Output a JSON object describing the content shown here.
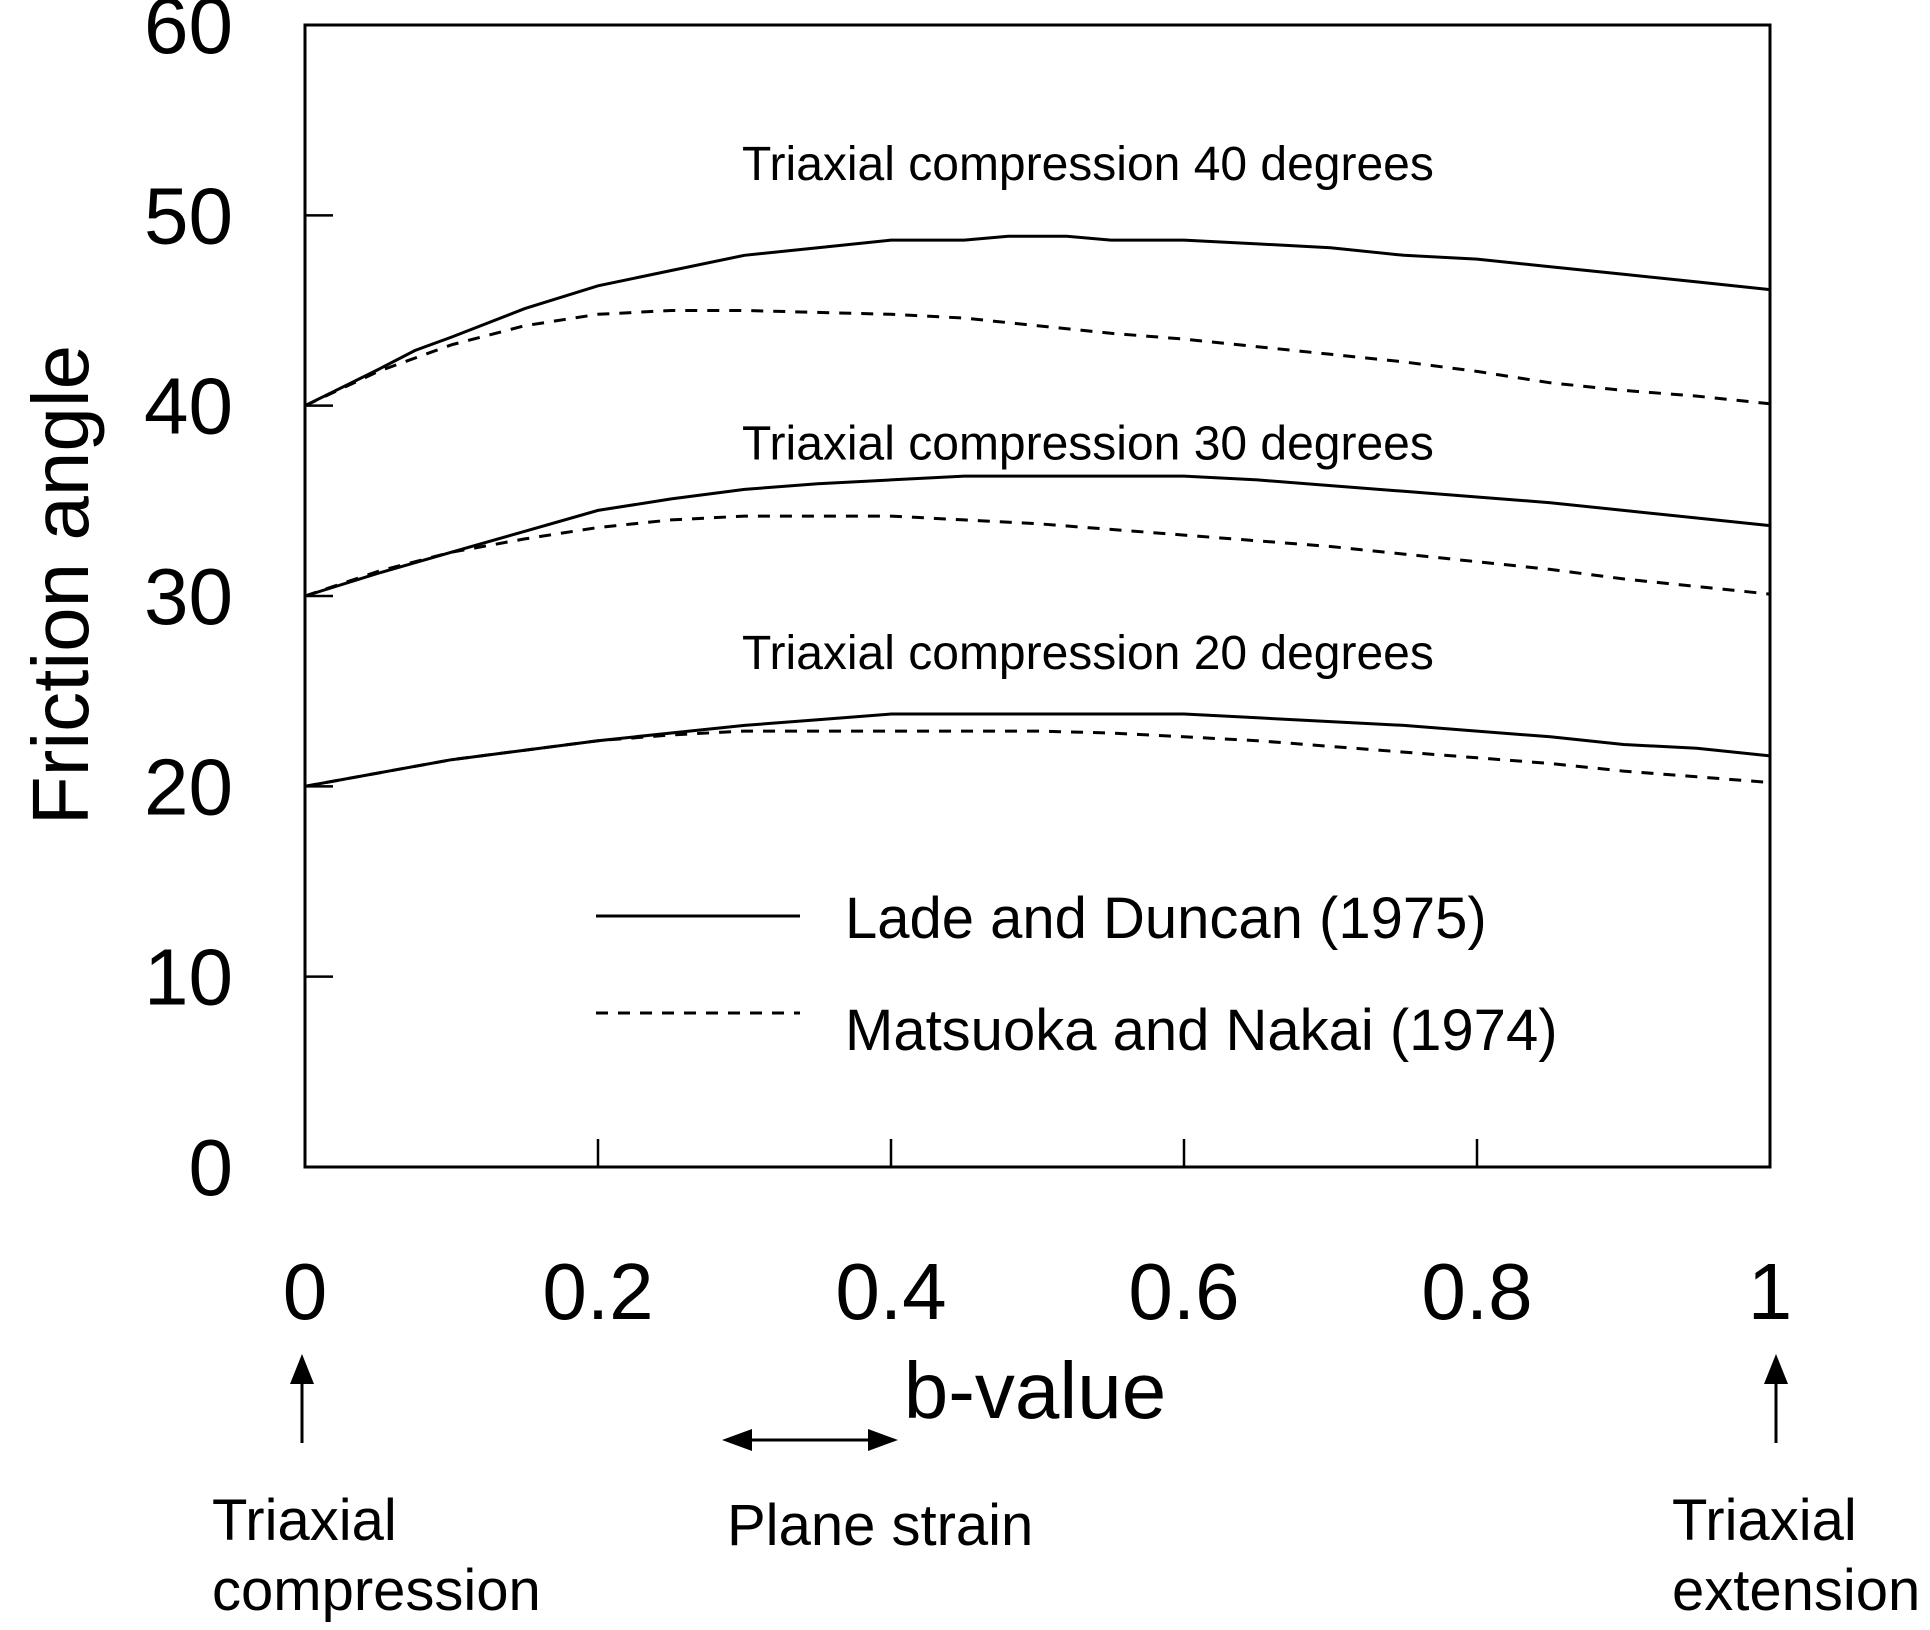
{
  "chart_data": {
    "type": "line",
    "xlabel": "b-value",
    "ylabel": "Friction angle",
    "xlim": [
      0,
      1
    ],
    "ylim": [
      0,
      60
    ],
    "x_ticks": [
      0,
      0.2,
      0.4,
      0.6,
      0.8,
      1
    ],
    "y_ticks": [
      0,
      10,
      20,
      30,
      40,
      50,
      60
    ],
    "x_tick_labels": [
      "0",
      "0.2",
      "0.4",
      "0.6",
      "0.8",
      "1"
    ],
    "y_tick_labels": [
      "0",
      "10",
      "20",
      "30",
      "40",
      "50",
      "60"
    ],
    "grid": false,
    "legend": {
      "placement": "center",
      "entries": [
        {
          "label": "Lade and Duncan (1975)",
          "style": "solid"
        },
        {
          "label": "Matsuoka and Nakai (1974)",
          "style": "dashed"
        }
      ]
    },
    "groups": [
      {
        "label": "Triaxial compression 40 degrees",
        "label_y": 52.7,
        "series": [
          {
            "model": "Lade and Duncan (1975)",
            "style": "solid",
            "x": [
              0,
              0.05,
              0.075,
              0.1,
              0.15,
              0.2,
              0.25,
              0.3,
              0.35,
              0.4,
              0.45,
              0.48,
              0.52,
              0.55,
              0.6,
              0.65,
              0.7,
              0.75,
              0.8,
              0.85,
              0.9,
              0.95,
              1
            ],
            "y": [
              40,
              41.9,
              42.9,
              43.6,
              45.1,
              46.3,
              47.1,
              47.9,
              48.3,
              48.7,
              48.7,
              48.9,
              48.9,
              48.7,
              48.7,
              48.5,
              48.3,
              47.9,
              47.7,
              47.3,
              46.9,
              46.5,
              46.1
            ]
          },
          {
            "model": "Matsuoka and Nakai (1974)",
            "style": "dashed",
            "x": [
              0,
              0.05,
              0.1,
              0.15,
              0.2,
              0.25,
              0.3,
              0.35,
              0.4,
              0.45,
              0.5,
              0.55,
              0.6,
              0.65,
              0.7,
              0.75,
              0.8,
              0.85,
              0.9,
              0.95,
              1
            ],
            "y": [
              40,
              41.8,
              43.2,
              44.2,
              44.8,
              45.0,
              45.0,
              44.9,
              44.8,
              44.6,
              44.2,
              43.8,
              43.5,
              43.1,
              42.7,
              42.3,
              41.8,
              41.2,
              40.8,
              40.5,
              40.1
            ]
          }
        ]
      },
      {
        "label": "Triaxial compression 30 degrees",
        "label_y": 38.0,
        "series": [
          {
            "model": "Lade and Duncan (1975)",
            "style": "solid",
            "x": [
              0,
              0.05,
              0.1,
              0.15,
              0.2,
              0.25,
              0.3,
              0.35,
              0.4,
              0.45,
              0.5,
              0.55,
              0.6,
              0.65,
              0.7,
              0.75,
              0.8,
              0.85,
              0.9,
              0.95,
              1
            ],
            "y": [
              30,
              31.2,
              32.3,
              33.4,
              34.5,
              35.1,
              35.6,
              35.9,
              36.1,
              36.3,
              36.3,
              36.3,
              36.3,
              36.1,
              35.8,
              35.5,
              35.2,
              34.9,
              34.5,
              34.1,
              33.7
            ]
          },
          {
            "model": "Matsuoka and Nakai (1974)",
            "style": "dashed",
            "x": [
              0,
              0.05,
              0.1,
              0.15,
              0.2,
              0.25,
              0.3,
              0.35,
              0.4,
              0.45,
              0.5,
              0.55,
              0.6,
              0.65,
              0.7,
              0.75,
              0.8,
              0.85,
              0.9,
              0.95,
              1
            ],
            "y": [
              30,
              31.3,
              32.3,
              33.0,
              33.6,
              34.0,
              34.2,
              34.2,
              34.2,
              34.0,
              33.8,
              33.5,
              33.2,
              32.9,
              32.6,
              32.2,
              31.8,
              31.4,
              30.9,
              30.5,
              30.1
            ]
          }
        ]
      },
      {
        "label": "Triaxial compression 20 degrees",
        "label_y": 27.0,
        "series": [
          {
            "model": "Lade and Duncan (1975)",
            "style": "solid",
            "x": [
              0,
              0.05,
              0.1,
              0.15,
              0.2,
              0.25,
              0.3,
              0.35,
              0.4,
              0.45,
              0.5,
              0.55,
              0.6,
              0.65,
              0.7,
              0.75,
              0.8,
              0.85,
              0.9,
              0.95,
              1
            ],
            "y": [
              20,
              20.7,
              21.4,
              21.9,
              22.4,
              22.8,
              23.2,
              23.5,
              23.8,
              23.8,
              23.8,
              23.8,
              23.8,
              23.6,
              23.4,
              23.2,
              22.9,
              22.6,
              22.2,
              22.0,
              21.6
            ]
          },
          {
            "model": "Matsuoka and Nakai (1974)",
            "style": "dashed",
            "x": [
              0,
              0.05,
              0.1,
              0.15,
              0.2,
              0.25,
              0.3,
              0.35,
              0.4,
              0.45,
              0.5,
              0.55,
              0.6,
              0.65,
              0.7,
              0.75,
              0.8,
              0.85,
              0.9,
              0.95,
              1
            ],
            "y": [
              20,
              20.7,
              21.4,
              21.9,
              22.4,
              22.7,
              22.9,
              22.9,
              22.9,
              22.9,
              22.9,
              22.8,
              22.6,
              22.4,
              22.1,
              21.8,
              21.5,
              21.2,
              20.8,
              20.5,
              20.2
            ]
          }
        ]
      }
    ],
    "annotations": {
      "triaxial_compression": [
        "Triaxial",
        "compression"
      ],
      "plane_strain": "Plane strain",
      "triaxial_extension": [
        "Triaxial",
        "extension"
      ]
    }
  }
}
